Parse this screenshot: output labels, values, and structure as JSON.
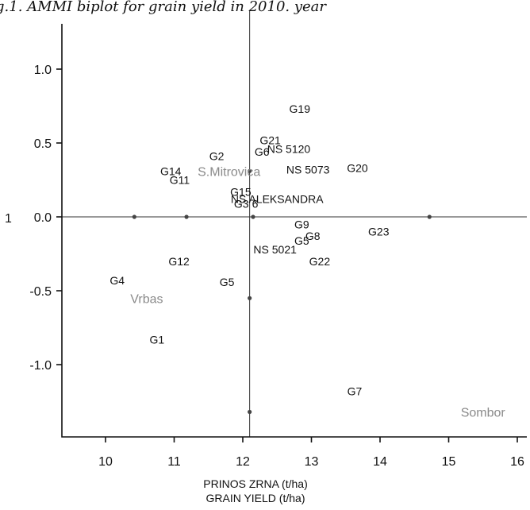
{
  "chart_data": {
    "type": "scatter",
    "title": "g.1. AMMI biplot for grain yield in 2010. year",
    "xlabel": "PRINOS ZRNA (t/ha)",
    "xlabel2": "GRAIN YIELD (t/ha)",
    "ylabel": "1",
    "xlim": [
      9.3,
      16
    ],
    "ylim": [
      -1.45,
      1.3
    ],
    "x_ticks": [
      "10",
      "11",
      "12",
      "13",
      "14",
      "15",
      "16"
    ],
    "y_ticks": [
      "1.0",
      "0.5",
      "0.0",
      "-0.5",
      "-1.0"
    ],
    "ref_x": 12.1,
    "ref_y": 0.0,
    "genotypes": [
      {
        "label": "G19",
        "x": 12.83,
        "y": 0.73
      },
      {
        "label": "G21",
        "x": 12.4,
        "y": 0.52
      },
      {
        "label": "NS 5120",
        "x": 12.67,
        "y": 0.46
      },
      {
        "label": "G6",
        "x": 12.28,
        "y": 0.44
      },
      {
        "label": "G2",
        "x": 11.62,
        "y": 0.41
      },
      {
        "label": "G14",
        "x": 10.95,
        "y": 0.31
      },
      {
        "label": "G11",
        "x": 11.08,
        "y": 0.25
      },
      {
        "label": "NS 5073",
        "x": 12.95,
        "y": 0.32
      },
      {
        "label": "G20",
        "x": 13.67,
        "y": 0.33
      },
      {
        "label": "G15",
        "x": 11.97,
        "y": 0.17
      },
      {
        "label": "NS ALEKSANDRA",
        "x": 12.5,
        "y": 0.12
      },
      {
        "label": "G3",
        "x": 11.98,
        "y": 0.09
      },
      {
        "label": "6",
        "x": 12.18,
        "y": 0.09
      },
      {
        "label": "G9",
        "x": 12.86,
        "y": -0.05
      },
      {
        "label": "G8",
        "x": 13.02,
        "y": -0.13
      },
      {
        "label": "G5",
        "x": 12.86,
        "y": -0.16
      },
      {
        "label": "G23",
        "x": 13.98,
        "y": -0.1
      },
      {
        "label": "NS 5021",
        "x": 12.47,
        "y": -0.22
      },
      {
        "label": "G22",
        "x": 13.12,
        "y": -0.3
      },
      {
        "label": "G12",
        "x": 11.07,
        "y": -0.3
      },
      {
        "label": "G4",
        "x": 10.17,
        "y": -0.43
      },
      {
        "label": "G5",
        "x": 11.77,
        "y": -0.44
      },
      {
        "label": "G1",
        "x": 10.75,
        "y": -0.83
      },
      {
        "label": "G7",
        "x": 13.63,
        "y": -1.18
      }
    ],
    "environments": [
      {
        "label": "S.Mitrovica",
        "x": 12.1,
        "y": 0.31,
        "label_x": 11.8,
        "label_y": 0.31
      },
      {
        "label": "Vrbas",
        "x": 10.42,
        "y": 0.0,
        "label_x": 10.6,
        "label_y": -0.55
      },
      {
        "label": "",
        "x": 11.18,
        "y": 0.0
      },
      {
        "label": "",
        "x": 12.15,
        "y": 0.0
      },
      {
        "label": "",
        "x": 14.72,
        "y": 0.0
      },
      {
        "label": "",
        "x": 12.1,
        "y": -0.55
      },
      {
        "label": "Sombor",
        "x": 12.1,
        "y": -1.32,
        "label_x": 15.5,
        "label_y": -1.32
      }
    ],
    "colors": {
      "genotype_text": "#111111",
      "environment_text": "#8a8a8a",
      "axis": "#111111"
    }
  }
}
